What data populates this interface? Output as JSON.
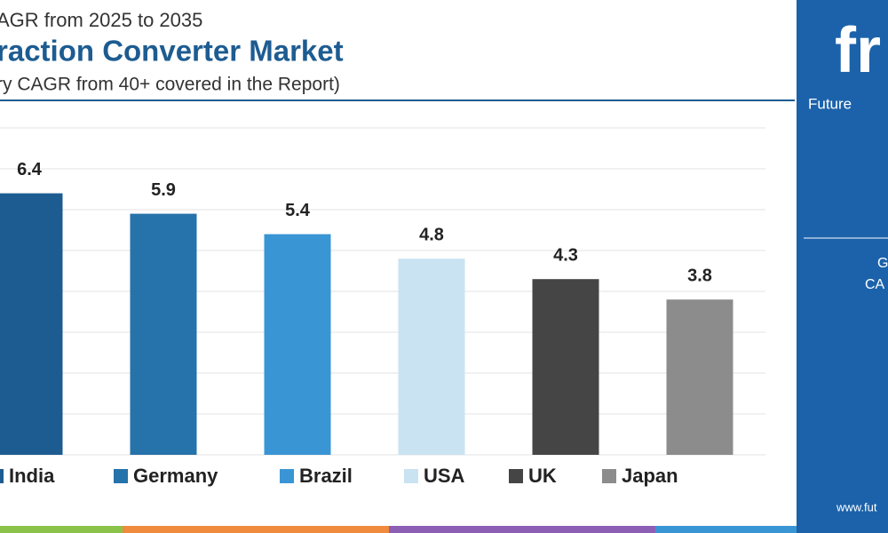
{
  "chart_data": {
    "type": "bar",
    "header": [
      "AGR from 2025 to 2035",
      "raction Converter Market",
      "ry CAGR from 40+ covered in the Report)"
    ],
    "categories": [
      "India",
      "Germany",
      "Brazil",
      "USA",
      "UK",
      "Japan"
    ],
    "values": [
      6.4,
      5.9,
      5.4,
      4.8,
      4.3,
      3.8
    ],
    "colors": [
      "#1d5c91",
      "#2672aa",
      "#3a95d4",
      "#c9e3f3",
      "#454545",
      "#8c8c8c"
    ],
    "ylim": [
      0,
      8
    ],
    "yticks": [
      0,
      1,
      2,
      3,
      4,
      5,
      6,
      7,
      8
    ],
    "grid": true
  },
  "side_panel": {
    "logo": "fr",
    "brand": "Future",
    "line1": "G",
    "line2": "CA",
    "url": "www.fut"
  }
}
